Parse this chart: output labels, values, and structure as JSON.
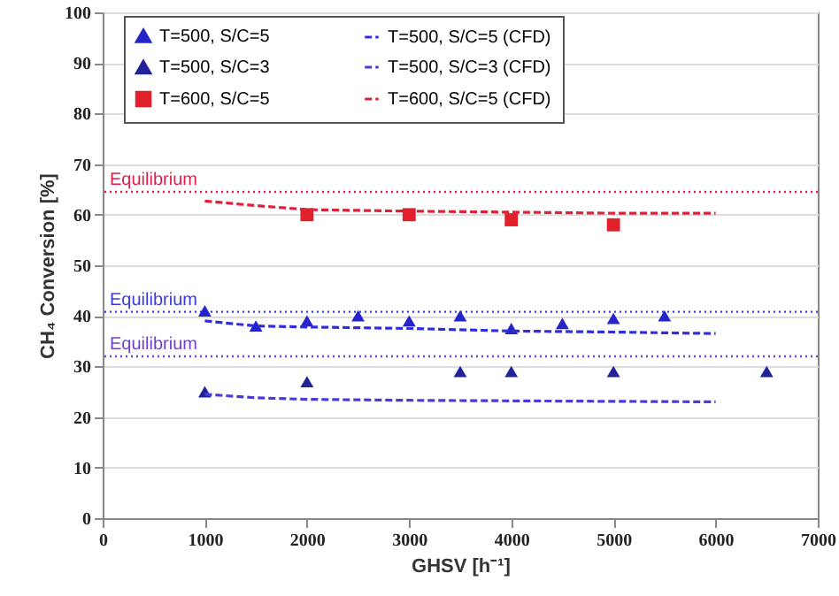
{
  "chart_data": {
    "type": "scatter",
    "xlabel": "GHSV [h⁻¹]",
    "ylabel": "CH₄ Conversion [%]",
    "xlim": [
      0,
      7000
    ],
    "xticks": [
      0,
      1000,
      2000,
      3000,
      4000,
      5000,
      6000,
      7000
    ],
    "ylim": [
      0,
      100
    ],
    "yticks": [
      0,
      10,
      20,
      30,
      40,
      50,
      60,
      70,
      80,
      90,
      100
    ],
    "grid": "y",
    "legend": "top",
    "series": [
      {
        "name": "T=500, S/C=5",
        "type": "scatter",
        "marker": "triangle",
        "color": "#2424c8",
        "x": [
          1000,
          1500,
          2000,
          2500,
          3000,
          3500,
          4000,
          4500,
          5000,
          5500
        ],
        "values": [
          41,
          38,
          39,
          40,
          39,
          40,
          37.5,
          38.5,
          39.5,
          40
        ]
      },
      {
        "name": "T=500, S/C=3",
        "type": "scatter",
        "marker": "triangle",
        "color": "#22229a",
        "x": [
          1000,
          2000,
          3500,
          4000,
          5000,
          6500
        ],
        "values": [
          25,
          27,
          29,
          29,
          29,
          29
        ]
      },
      {
        "name": "T=600, S/C=5",
        "type": "scatter",
        "marker": "square",
        "color": "#e0202a",
        "x": [
          2000,
          3000,
          4000,
          5000
        ],
        "values": [
          60,
          60,
          59,
          58
        ]
      },
      {
        "name": "T=500, S/C=5 (CFD)",
        "type": "line",
        "line_style": "dashed",
        "color": "#2e2ee0",
        "x": [
          1000,
          1500,
          2000,
          3000,
          4000,
          5000,
          6000
        ],
        "values": [
          39,
          38,
          37.8,
          37.5,
          37,
          36.8,
          36.5
        ]
      },
      {
        "name": "T=500, S/C=3 (CFD)",
        "type": "line",
        "line_style": "dashed",
        "color": "#4a3ad6",
        "x": [
          1000,
          1500,
          2000,
          3000,
          4000,
          5000,
          6000
        ],
        "values": [
          24.5,
          23.8,
          23.5,
          23.3,
          23.2,
          23.1,
          23
        ]
      },
      {
        "name": "T=600, S/C=5 (CFD)",
        "type": "line",
        "line_style": "dashed",
        "color": "#e0203a",
        "x": [
          1000,
          1500,
          2000,
          3000,
          4000,
          5000,
          6000
        ],
        "values": [
          62.7,
          61.8,
          61,
          60.7,
          60.5,
          60.3,
          60.3
        ]
      }
    ],
    "ref_lines": [
      {
        "axis": "y",
        "value": 64.5,
        "label": "Equilibrium",
        "color": "#e0204a",
        "line_style": "dotted"
      },
      {
        "axis": "y",
        "value": 40.8,
        "label": "Equilibrium",
        "color": "#3a3ae0",
        "line_style": "dotted"
      },
      {
        "axis": "y",
        "value": 32,
        "label": "Equilibrium",
        "color": "#7040d0",
        "line_style": "dotted"
      }
    ]
  }
}
